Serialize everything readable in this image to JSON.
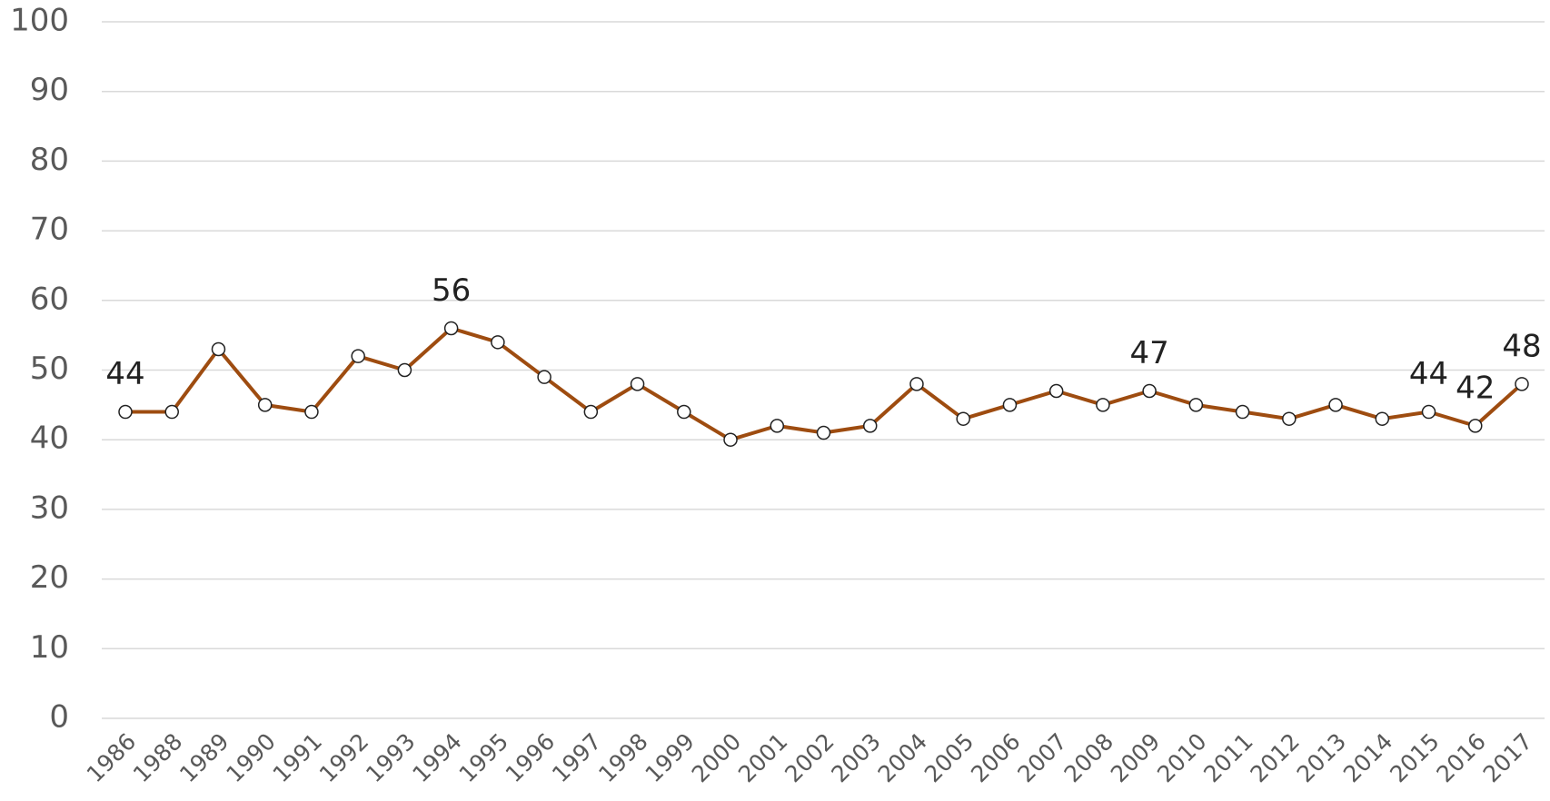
{
  "chart_data": {
    "type": "line",
    "categories": [
      "1986",
      "1988",
      "1989",
      "1990",
      "1991",
      "1992",
      "1993",
      "1994",
      "1995",
      "1996",
      "1997",
      "1998",
      "1999",
      "2000",
      "2001",
      "2002",
      "2003",
      "2004",
      "2005",
      "2006",
      "2007",
      "2008",
      "2009",
      "2010",
      "2011",
      "2012",
      "2013",
      "2014",
      "2015",
      "2016",
      "2017"
    ],
    "series": [
      {
        "color": "#9e4c10",
        "values": [
          44,
          44,
          53,
          45,
          44,
          52,
          50,
          56,
          54,
          49,
          44,
          48,
          44,
          40,
          42,
          41,
          42,
          48,
          43,
          45,
          47,
          45,
          47,
          45,
          44,
          43,
          45,
          43,
          44,
          42,
          48
        ],
        "value_labels": [
          "44",
          null,
          null,
          null,
          null,
          null,
          null,
          "56",
          null,
          null,
          null,
          null,
          null,
          null,
          null,
          null,
          null,
          null,
          null,
          null,
          null,
          null,
          "47",
          null,
          null,
          null,
          null,
          null,
          "44",
          "42",
          "48"
        ]
      }
    ],
    "ylim": [
      0,
      100
    ],
    "yticks": [
      0,
      10,
      20,
      30,
      40,
      50,
      60,
      70,
      80,
      90,
      100
    ],
    "grid": true
  }
}
